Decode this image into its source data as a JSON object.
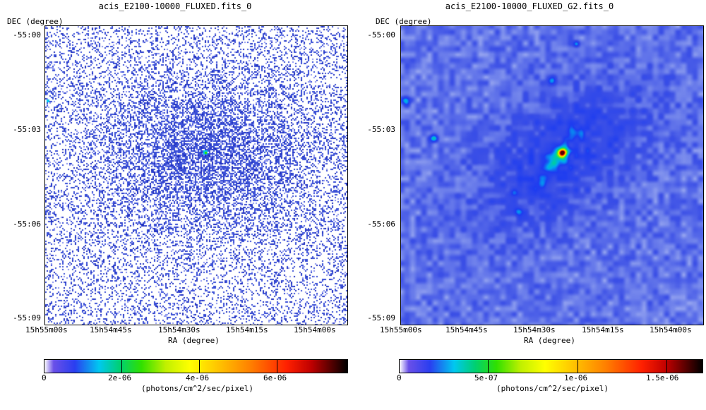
{
  "left_panel": {
    "title": "acis_E2100-10000_FLUXED.fits_0",
    "dec_label": "DEC (degree)",
    "ra_label": "RA (degree)",
    "y_ticks": [
      "-55:00",
      "-55:03",
      "-55:06",
      "-55:09"
    ],
    "x_ticks": [
      "15h55m00s",
      "15h54m45s",
      "15h54m30s",
      "15h54m15s",
      "15h54m00s"
    ],
    "colorbar": {
      "ticks": [
        "0",
        "2e-06",
        "4e-06",
        "6e-06"
      ],
      "label": "(photons/cm^2/sec/pixel)"
    }
  },
  "right_panel": {
    "title": "acis_E2100-10000_FLUXED_G2.fits_0",
    "dec_label": "DEC (degree)",
    "ra_label": "RA (degree)",
    "y_ticks": [
      "-55:00",
      "-55:03",
      "-55:06",
      "-55:09"
    ],
    "x_ticks": [
      "15h55m00s",
      "15h54m45s",
      "15h54m30s",
      "15h54m15s",
      "15h54m00s"
    ],
    "colorbar": {
      "ticks": [
        "0",
        "5e-07",
        "1e-06",
        "1.5e-06"
      ],
      "label": "(photons/cm^2/sec/pixel)"
    }
  },
  "colors": {
    "pixel_blue": "#3a4fd6",
    "smooth_bg": "#6e84ea",
    "smooth_light": "#c7d0f6",
    "hot_red": "#e02020"
  }
}
